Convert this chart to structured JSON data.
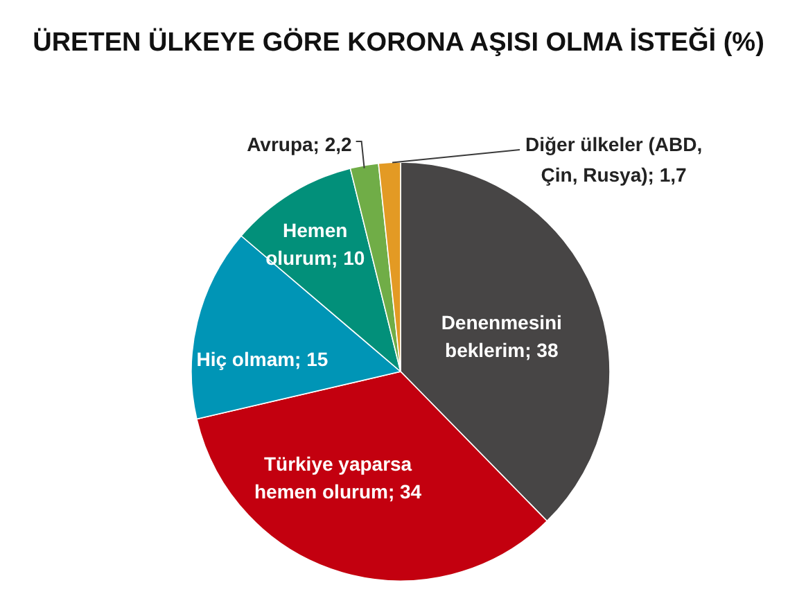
{
  "chart_data": {
    "type": "pie",
    "title": "ÜRETEN ÜLKEYE GÖRE KORONA AŞISI OLMA İSTEĞİ (%)",
    "categories": [
      "Denenmesini beklerim",
      "Türkiye yaparsa hemen olurum",
      "Hiç olmam",
      "Hemen olurum",
      "Avrupa",
      "Diğer ülkeler (ABD, Çin, Rusya)"
    ],
    "values": [
      38,
      34,
      15,
      10,
      2.2,
      1.7
    ],
    "colors": [
      "#474545",
      "#c3000f",
      "#0095b6",
      "#02907a",
      "#70ad47",
      "#e39a24"
    ],
    "value_labels": [
      "38",
      "34",
      "15",
      "10",
      "2,2",
      "1,7"
    ]
  }
}
